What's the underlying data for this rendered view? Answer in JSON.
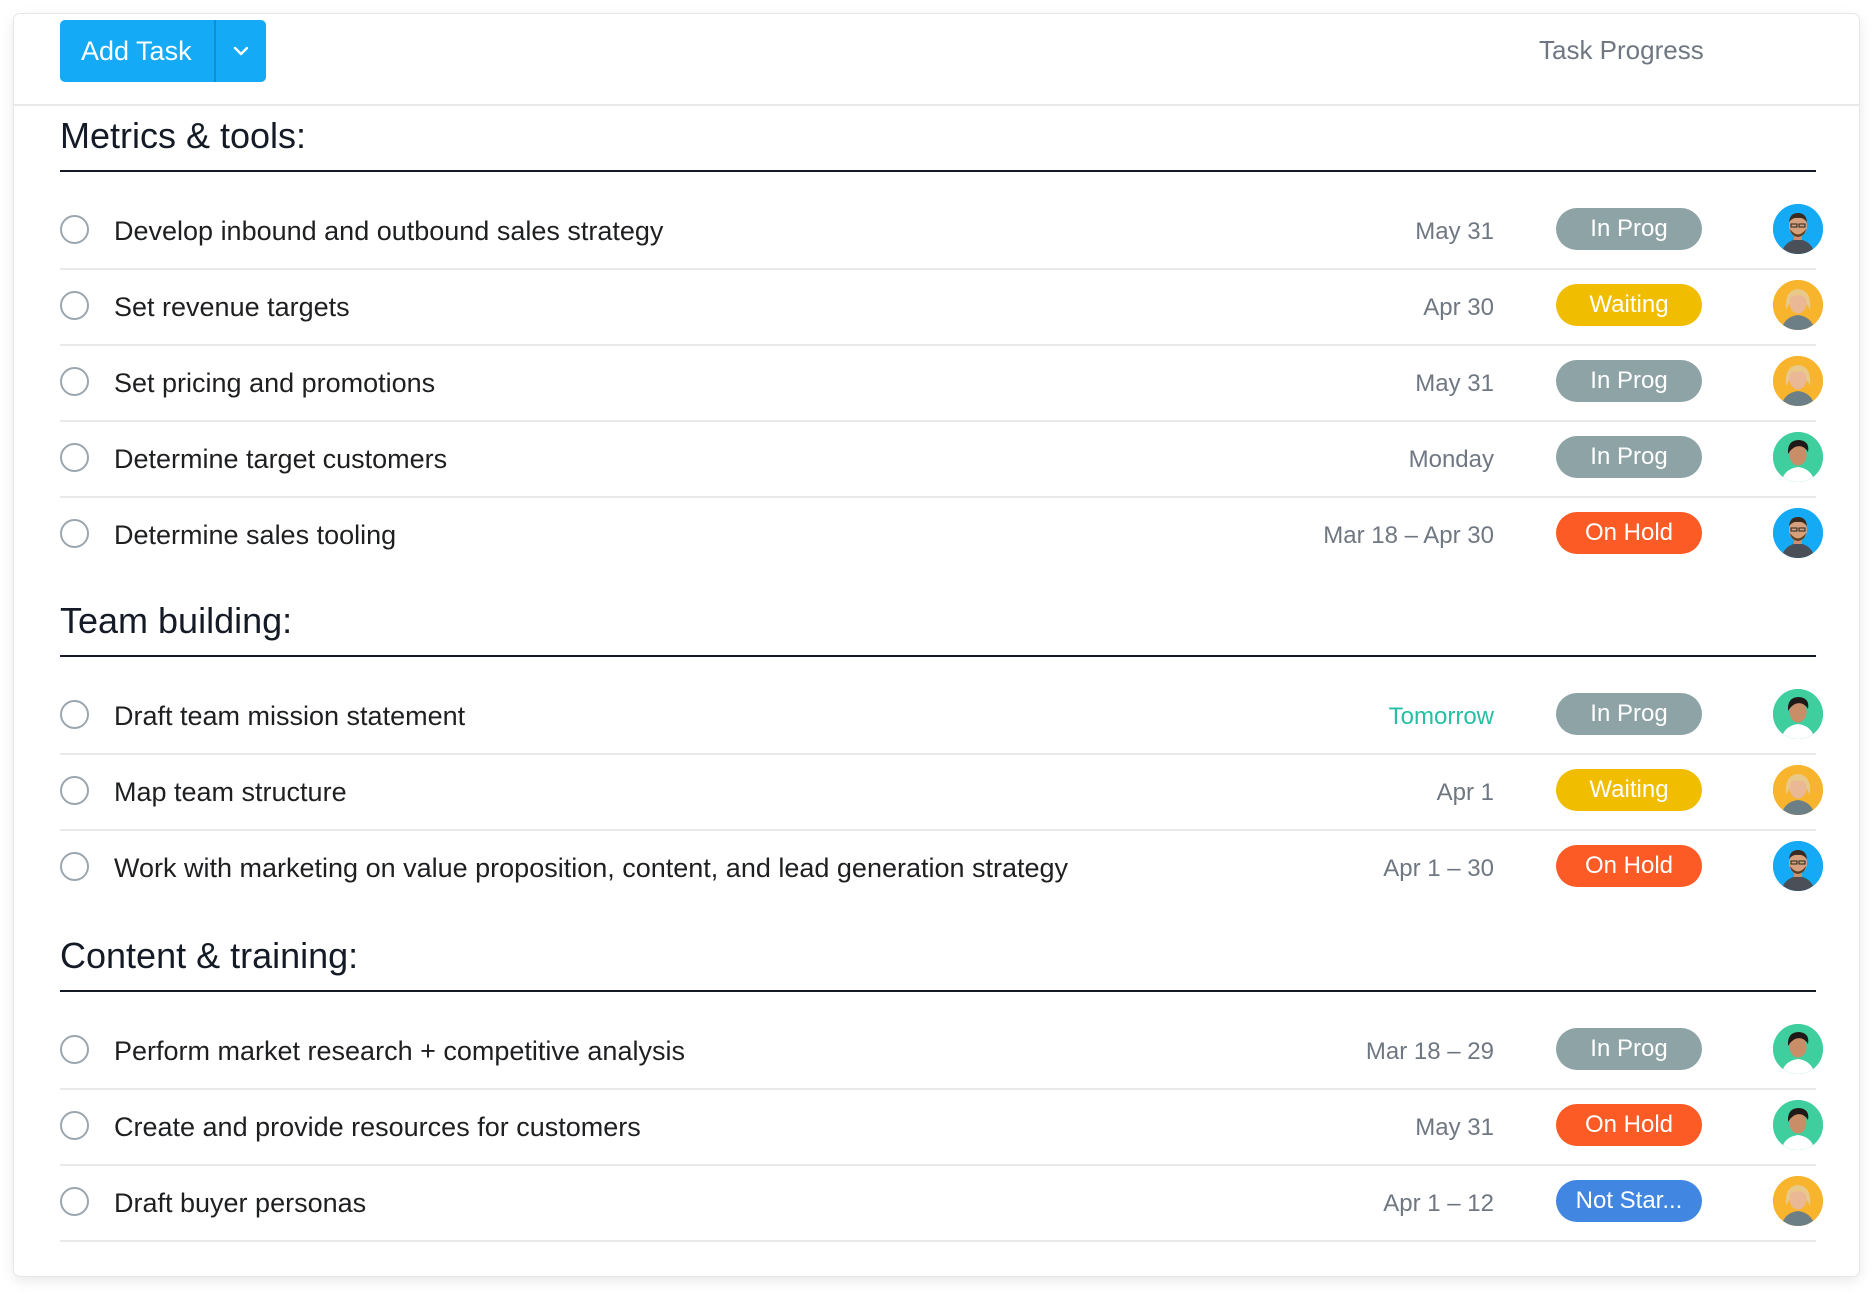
{
  "toolbar": {
    "add_task_label": "Add Task",
    "column_header": "Task Progress"
  },
  "colors": {
    "accent": "#14aaf5",
    "in_prog": "#8da3a6",
    "waiting": "#f1bd00",
    "on_hold": "#fc5b26",
    "not_started": "#4186e0",
    "due_soon": "#25bfa4"
  },
  "sections": [
    {
      "title": "Metrics & tools:",
      "tasks": [
        {
          "name": "Develop inbound and outbound sales strategy",
          "due": "May 31",
          "status": "In Prog",
          "assignee_icon": "avatar-man-blue"
        },
        {
          "name": "Set revenue targets",
          "due": "Apr 30",
          "status": "Waiting",
          "assignee_icon": "avatar-woman-orange"
        },
        {
          "name": "Set pricing and promotions",
          "due": "May 31",
          "status": "In Prog",
          "assignee_icon": "avatar-woman-orange"
        },
        {
          "name": "Determine target customers",
          "due": "Monday",
          "status": "In Prog",
          "assignee_icon": "avatar-person-green"
        },
        {
          "name": "Determine sales tooling",
          "due": "Mar 18 – Apr 30",
          "status": "On Hold",
          "assignee_icon": "avatar-man-blue"
        }
      ]
    },
    {
      "title": "Team building:",
      "tasks": [
        {
          "name": "Draft team mission statement",
          "due": "Tomorrow",
          "status": "In Prog",
          "assignee_icon": "avatar-person-green"
        },
        {
          "name": "Map team structure",
          "due": "Apr 1",
          "status": "Waiting",
          "assignee_icon": "avatar-woman-orange"
        },
        {
          "name": "Work with marketing on value proposition, content, and lead generation strategy",
          "due": "Apr 1 – 30",
          "status": "On Hold",
          "assignee_icon": "avatar-man-blue"
        }
      ]
    },
    {
      "title": "Content & training:",
      "tasks": [
        {
          "name": "Perform market research + competitive analysis",
          "due": "Mar 18 – 29",
          "status": "In Prog",
          "assignee_icon": "avatar-person-green"
        },
        {
          "name": "Create and provide resources for customers",
          "due": "May 31",
          "status": "On Hold",
          "assignee_icon": "avatar-person-green"
        },
        {
          "name": "Draft buyer personas",
          "due": "Apr 1 – 12",
          "status": "Not Star...",
          "assignee_icon": "avatar-woman-orange"
        }
      ]
    }
  ]
}
